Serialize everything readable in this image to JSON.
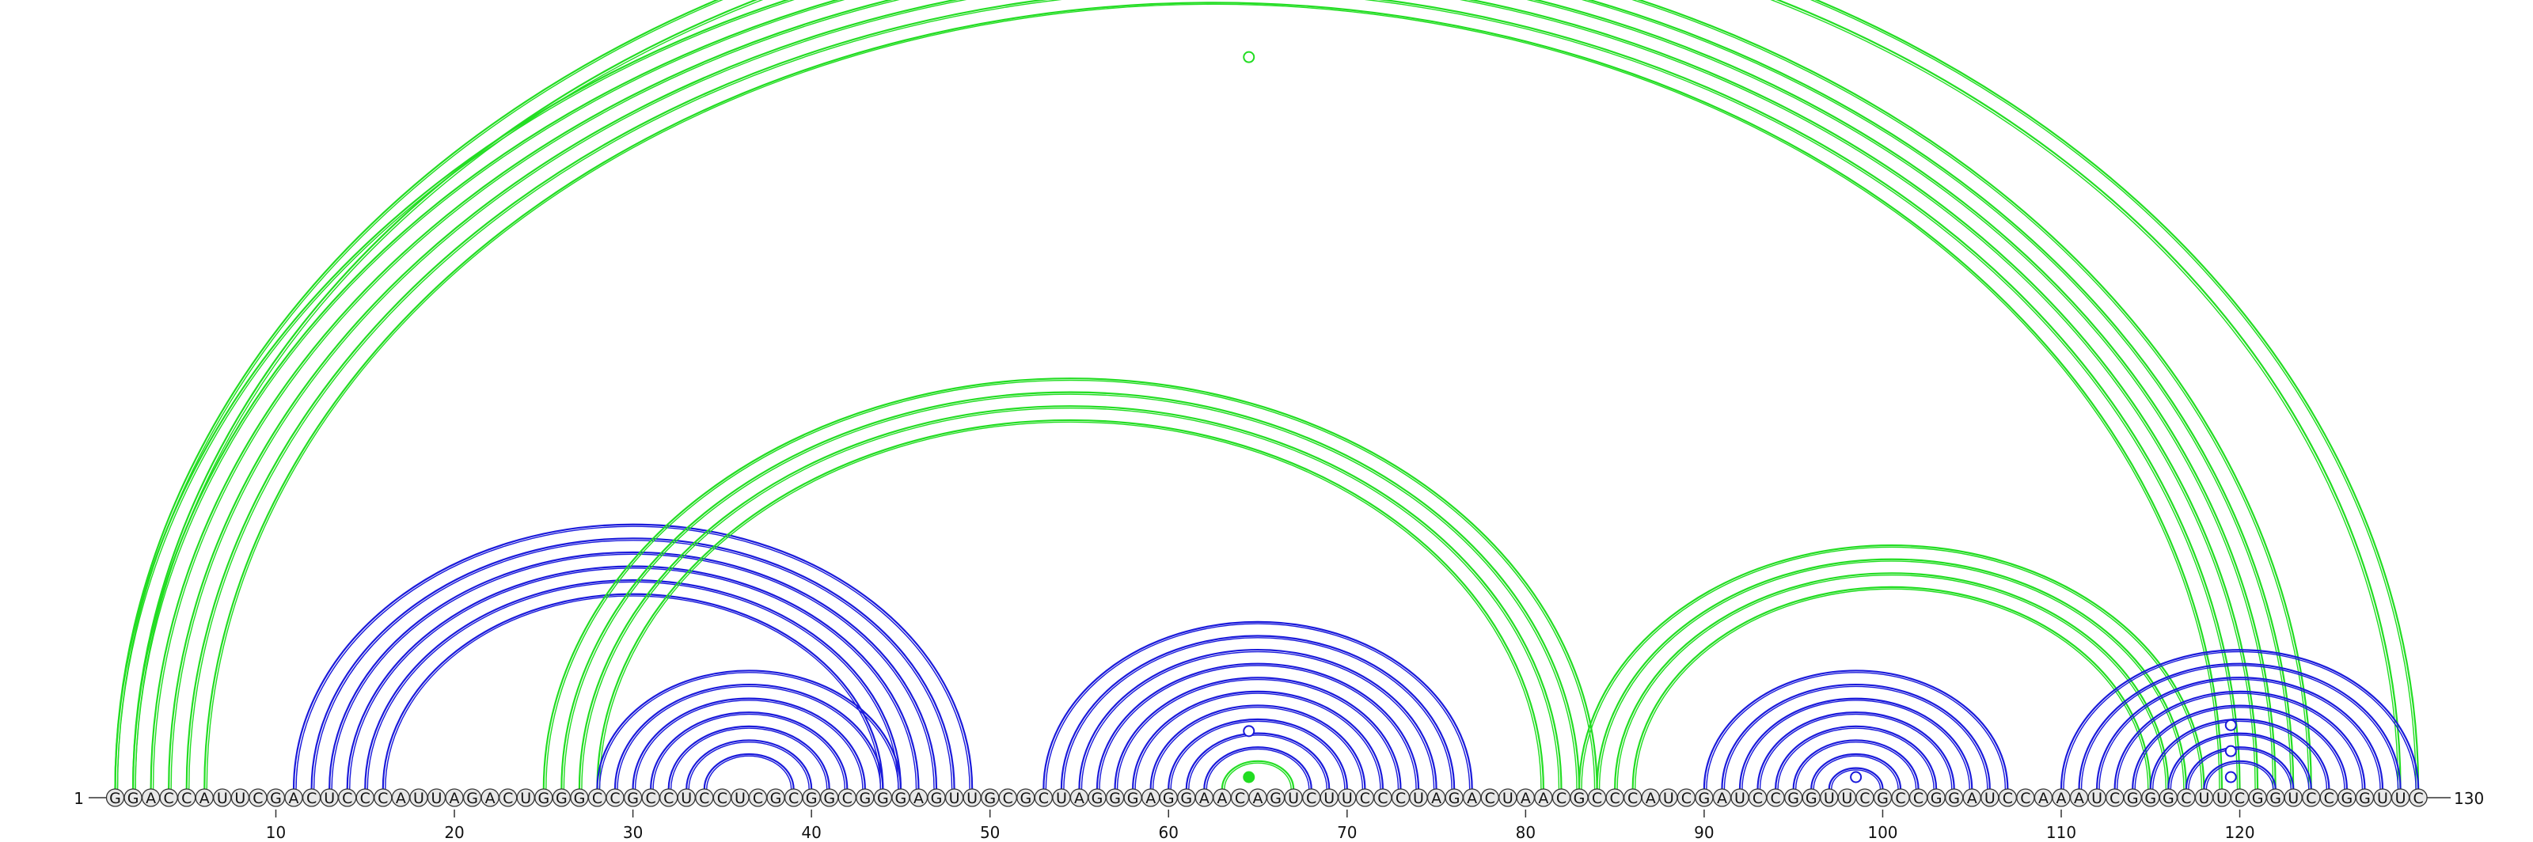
{
  "sequence": "GGACCAUUCGACUCCCAUUAGACUGGGCCGCCUCCUCGCGGCGGGAGUUGCGCUAGGGAGGAACAGUCUUCCCUAGACUAACGCCCAUCGAUCCGGUUCGCCGGAUCCAAAUCGGGCUUCGGUCCGGUUC",
  "start_label": "1",
  "end_label": "130",
  "ticks": [
    "10",
    "20",
    "30",
    "40",
    "50",
    "60",
    "70",
    "80",
    "90",
    "100",
    "110",
    "120"
  ],
  "colors": {
    "blue_arcs": "#1a1adb",
    "green_arcs": "#22dd22",
    "nucleotide_fill": "#e8e8e8",
    "nucleotide_stroke": "#333333"
  },
  "arc_sets": [
    {
      "color": "green",
      "pairs": [
        [
          1,
          124
        ],
        [
          2,
          123
        ],
        [
          3,
          122
        ],
        [
          4,
          121
        ],
        [
          5,
          120
        ],
        [
          6,
          119
        ]
      ]
    },
    {
      "color": "green",
      "pairs": [
        [
          1,
          130
        ],
        [
          2,
          129
        ]
      ]
    },
    {
      "color": "blue",
      "pairs": [
        [
          11,
          49
        ],
        [
          12,
          48
        ],
        [
          13,
          47
        ],
        [
          14,
          46
        ],
        [
          15,
          45
        ],
        [
          16,
          44
        ]
      ]
    },
    {
      "color": "green",
      "pairs": [
        [
          25,
          84
        ],
        [
          26,
          83
        ],
        [
          27,
          82
        ],
        [
          28,
          81
        ]
      ]
    },
    {
      "color": "blue",
      "pairs": [
        [
          28,
          45
        ],
        [
          29,
          44
        ],
        [
          30,
          43
        ],
        [
          31,
          42
        ],
        [
          32,
          41
        ],
        [
          33,
          40
        ],
        [
          34,
          39
        ]
      ]
    },
    {
      "color": "blue",
      "pairs": [
        [
          53,
          77
        ],
        [
          54,
          76
        ],
        [
          55,
          75
        ],
        [
          56,
          74
        ],
        [
          57,
          73
        ],
        [
          58,
          72
        ],
        [
          59,
          71
        ],
        [
          60,
          70
        ],
        [
          61,
          69
        ],
        [
          62,
          68
        ]
      ]
    },
    {
      "color": "green",
      "pairs": [
        [
          63,
          67
        ]
      ]
    },
    {
      "color": "green",
      "pairs": [
        [
          83,
          118
        ],
        [
          84,
          117
        ],
        [
          85,
          116
        ],
        [
          86,
          115
        ]
      ]
    },
    {
      "color": "blue",
      "pairs": [
        [
          90,
          107
        ],
        [
          91,
          106
        ],
        [
          92,
          105
        ],
        [
          93,
          104
        ],
        [
          94,
          103
        ],
        [
          95,
          102
        ],
        [
          96,
          101
        ],
        [
          97,
          100
        ]
      ]
    },
    {
      "color": "blue",
      "pairs": [
        [
          110,
          130
        ],
        [
          111,
          129
        ],
        [
          112,
          128
        ],
        [
          113,
          127
        ],
        [
          114,
          126
        ],
        [
          115,
          125
        ],
        [
          116,
          124
        ],
        [
          117,
          123
        ],
        [
          118,
          122
        ]
      ]
    }
  ],
  "loop_markers": [
    {
      "position": 64.5,
      "height": 0.97,
      "color": "green",
      "filled": false
    },
    {
      "position": 64.5,
      "height": 0.062,
      "color": "blue",
      "filled": false
    },
    {
      "position": 64.5,
      "height": 0.0,
      "color": "green",
      "filled": true
    },
    {
      "position": 98.5,
      "height": 0.0,
      "color": "blue",
      "filled": false
    },
    {
      "position": 119.5,
      "height": 0.07,
      "color": "blue",
      "filled": false
    },
    {
      "position": 119.5,
      "height": 0.035,
      "color": "blue",
      "filled": false
    },
    {
      "position": 119.5,
      "height": 0.0,
      "color": "blue",
      "filled": false
    }
  ]
}
